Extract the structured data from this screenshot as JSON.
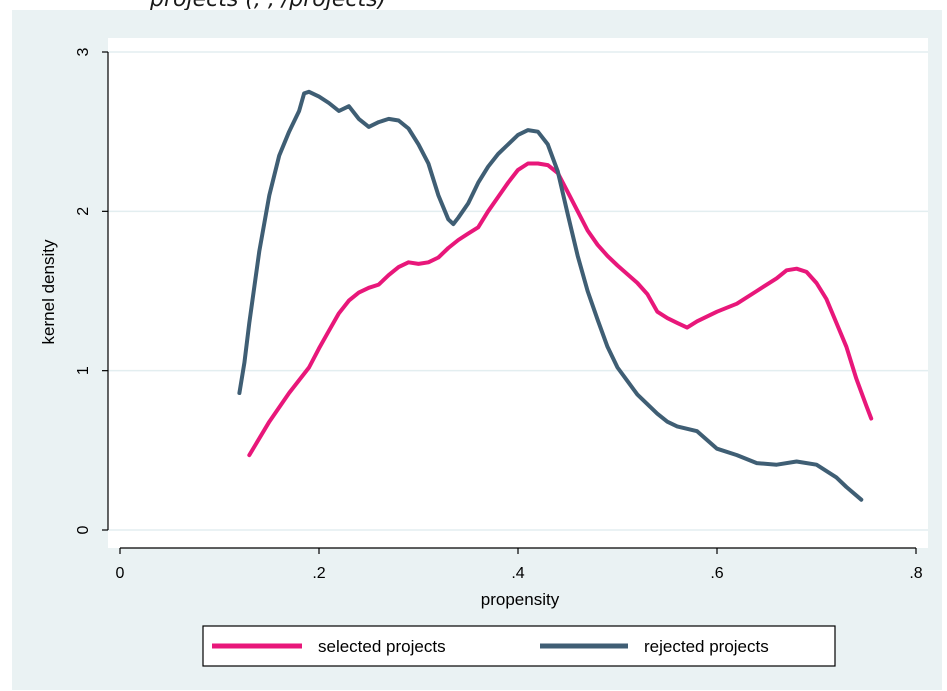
{
  "caption": "projects (, , /projects)",
  "chart_data": {
    "type": "line",
    "title": "",
    "xlabel": "propensity",
    "ylabel": "kernel density",
    "xlim": [
      0,
      0.8
    ],
    "ylim": [
      0,
      3
    ],
    "x_ticks": [
      0,
      0.2,
      0.4,
      0.6,
      0.8
    ],
    "x_tick_labels": [
      "0",
      ".2",
      ".4",
      ".6",
      ".8"
    ],
    "y_ticks": [
      0,
      1,
      2,
      3
    ],
    "y_tick_labels": [
      "0",
      "1",
      "2",
      "3"
    ],
    "grid": "horizontal",
    "legend_position": "bottom",
    "series": [
      {
        "name": "selected projects",
        "color": "#e8177a",
        "points": [
          [
            0.13,
            0.47
          ],
          [
            0.15,
            0.68
          ],
          [
            0.17,
            0.86
          ],
          [
            0.19,
            1.02
          ],
          [
            0.2,
            1.14
          ],
          [
            0.21,
            1.25
          ],
          [
            0.22,
            1.36
          ],
          [
            0.23,
            1.44
          ],
          [
            0.24,
            1.49
          ],
          [
            0.25,
            1.52
          ],
          [
            0.26,
            1.54
          ],
          [
            0.27,
            1.6
          ],
          [
            0.28,
            1.65
          ],
          [
            0.29,
            1.68
          ],
          [
            0.3,
            1.67
          ],
          [
            0.31,
            1.68
          ],
          [
            0.32,
            1.71
          ],
          [
            0.33,
            1.77
          ],
          [
            0.34,
            1.82
          ],
          [
            0.35,
            1.86
          ],
          [
            0.36,
            1.9
          ],
          [
            0.37,
            2.0
          ],
          [
            0.38,
            2.09
          ],
          [
            0.39,
            2.18
          ],
          [
            0.4,
            2.26
          ],
          [
            0.41,
            2.3
          ],
          [
            0.42,
            2.3
          ],
          [
            0.43,
            2.29
          ],
          [
            0.44,
            2.24
          ],
          [
            0.45,
            2.12
          ],
          [
            0.46,
            2.0
          ],
          [
            0.47,
            1.88
          ],
          [
            0.48,
            1.79
          ],
          [
            0.49,
            1.72
          ],
          [
            0.5,
            1.66
          ],
          [
            0.52,
            1.55
          ],
          [
            0.53,
            1.48
          ],
          [
            0.54,
            1.37
          ],
          [
            0.55,
            1.33
          ],
          [
            0.56,
            1.3
          ],
          [
            0.57,
            1.27
          ],
          [
            0.58,
            1.31
          ],
          [
            0.6,
            1.37
          ],
          [
            0.62,
            1.42
          ],
          [
            0.64,
            1.5
          ],
          [
            0.66,
            1.58
          ],
          [
            0.67,
            1.63
          ],
          [
            0.68,
            1.64
          ],
          [
            0.69,
            1.62
          ],
          [
            0.7,
            1.55
          ],
          [
            0.71,
            1.45
          ],
          [
            0.72,
            1.3
          ],
          [
            0.73,
            1.15
          ],
          [
            0.74,
            0.95
          ],
          [
            0.75,
            0.78
          ],
          [
            0.755,
            0.7
          ]
        ]
      },
      {
        "name": "rejected projects",
        "color": "#3f5e74",
        "points": [
          [
            0.12,
            0.86
          ],
          [
            0.125,
            1.05
          ],
          [
            0.13,
            1.3
          ],
          [
            0.14,
            1.75
          ],
          [
            0.15,
            2.1
          ],
          [
            0.16,
            2.35
          ],
          [
            0.17,
            2.5
          ],
          [
            0.18,
            2.63
          ],
          [
            0.185,
            2.74
          ],
          [
            0.19,
            2.75
          ],
          [
            0.2,
            2.72
          ],
          [
            0.21,
            2.68
          ],
          [
            0.22,
            2.63
          ],
          [
            0.23,
            2.66
          ],
          [
            0.24,
            2.58
          ],
          [
            0.25,
            2.53
          ],
          [
            0.26,
            2.56
          ],
          [
            0.27,
            2.58
          ],
          [
            0.28,
            2.57
          ],
          [
            0.29,
            2.52
          ],
          [
            0.3,
            2.42
          ],
          [
            0.31,
            2.3
          ],
          [
            0.32,
            2.1
          ],
          [
            0.33,
            1.95
          ],
          [
            0.335,
            1.92
          ],
          [
            0.34,
            1.96
          ],
          [
            0.35,
            2.05
          ],
          [
            0.36,
            2.18
          ],
          [
            0.37,
            2.28
          ],
          [
            0.38,
            2.36
          ],
          [
            0.39,
            2.42
          ],
          [
            0.4,
            2.48
          ],
          [
            0.41,
            2.51
          ],
          [
            0.42,
            2.5
          ],
          [
            0.43,
            2.42
          ],
          [
            0.44,
            2.25
          ],
          [
            0.45,
            1.98
          ],
          [
            0.46,
            1.72
          ],
          [
            0.47,
            1.5
          ],
          [
            0.48,
            1.32
          ],
          [
            0.49,
            1.15
          ],
          [
            0.5,
            1.02
          ],
          [
            0.52,
            0.85
          ],
          [
            0.54,
            0.73
          ],
          [
            0.55,
            0.68
          ],
          [
            0.56,
            0.65
          ],
          [
            0.58,
            0.62
          ],
          [
            0.6,
            0.51
          ],
          [
            0.62,
            0.47
          ],
          [
            0.64,
            0.42
          ],
          [
            0.66,
            0.41
          ],
          [
            0.68,
            0.43
          ],
          [
            0.7,
            0.41
          ],
          [
            0.72,
            0.33
          ],
          [
            0.73,
            0.27
          ],
          [
            0.745,
            0.19
          ]
        ]
      }
    ]
  }
}
